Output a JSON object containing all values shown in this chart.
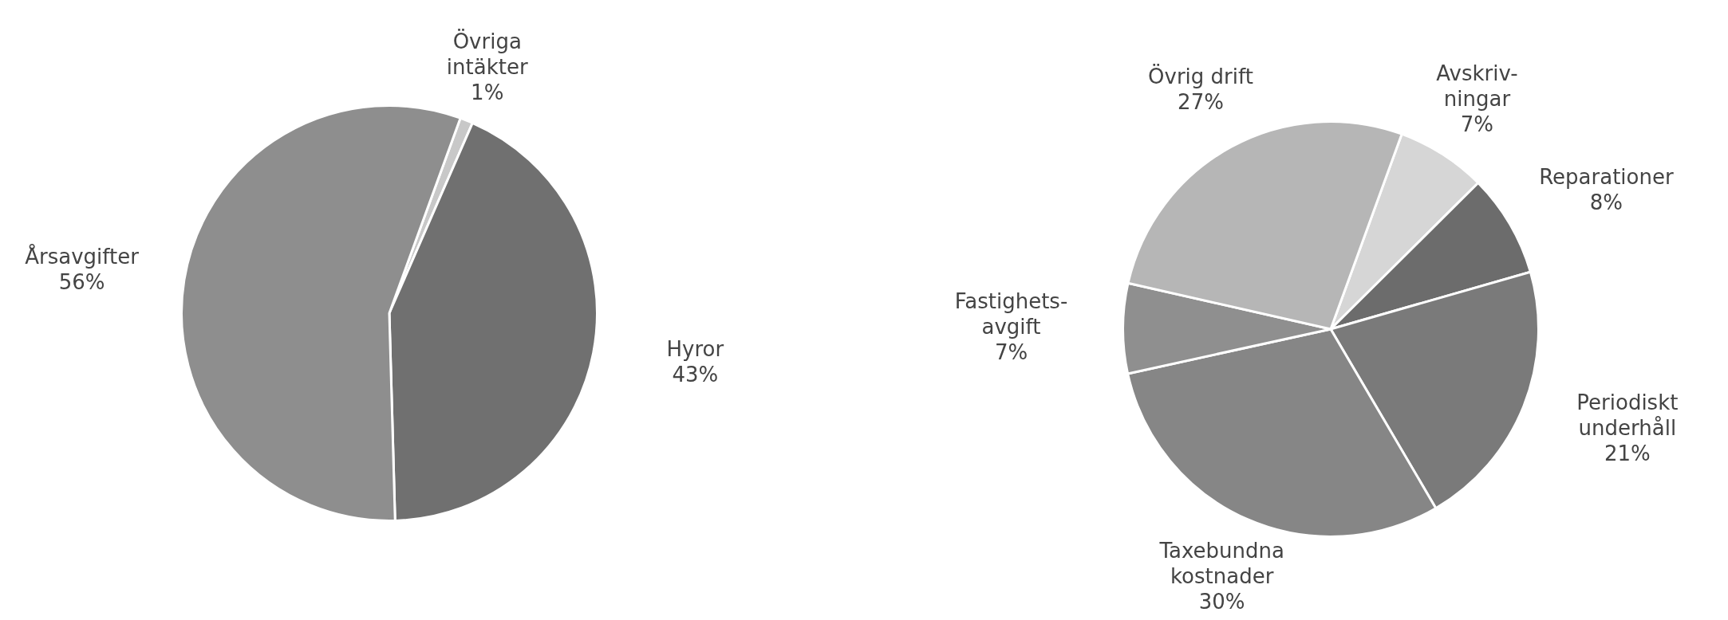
{
  "chart_data": [
    {
      "type": "pie",
      "categories": [
        "Övriga\nintäkter",
        "Hyror",
        "Årsavgifter"
      ],
      "values": [
        1,
        43,
        56
      ],
      "value_labels": [
        "1%",
        "43%",
        "56%"
      ],
      "colors": [
        "#c8c8c8",
        "#707070",
        "#8e8e8e"
      ]
    },
    {
      "type": "pie",
      "categories": [
        "Avskriv-\nningar",
        "Reparationer",
        "Periodiskt\nunderhåll",
        "Taxebundna\nkostnader",
        "Fastighets-\navgift",
        "Övrig drift"
      ],
      "values": [
        7,
        8,
        21,
        30,
        7,
        27
      ],
      "value_labels": [
        "7%",
        "8%",
        "21%",
        "30%",
        "7%",
        "27%"
      ],
      "colors": [
        "#d6d6d6",
        "#6c6c6c",
        "#7a7a7a",
        "#868686",
        "#8f8f8f",
        "#b6b6b6"
      ]
    }
  ]
}
